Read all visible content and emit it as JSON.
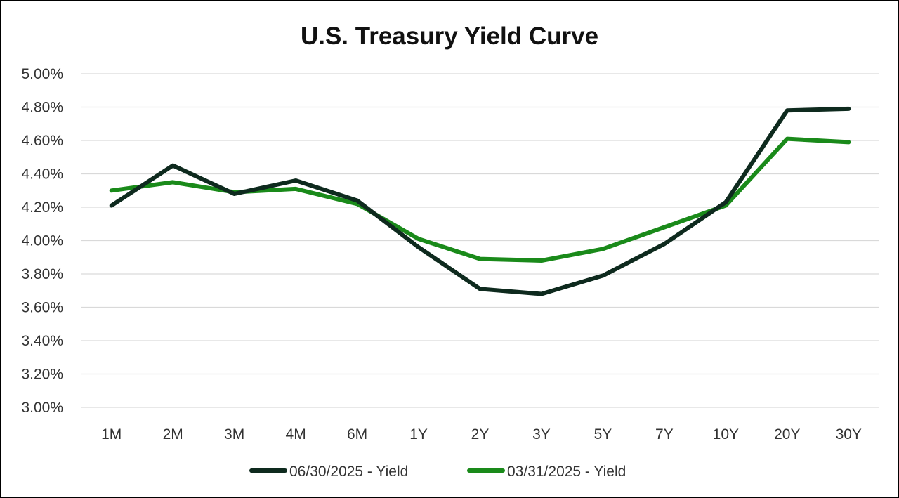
{
  "chart_data": {
    "type": "line",
    "title": "U.S. Treasury Yield Curve",
    "xlabel": "",
    "ylabel": "",
    "categories": [
      "1M",
      "2M",
      "3M",
      "4M",
      "6M",
      "1Y",
      "2Y",
      "3Y",
      "5Y",
      "7Y",
      "10Y",
      "20Y",
      "30Y"
    ],
    "ylim": [
      3.0,
      5.0
    ],
    "yticks": [
      "3.00%",
      "3.20%",
      "3.40%",
      "3.60%",
      "3.80%",
      "4.00%",
      "4.20%",
      "4.40%",
      "4.60%",
      "4.80%",
      "5.00%"
    ],
    "ytick_values": [
      3.0,
      3.2,
      3.4,
      3.6,
      3.8,
      4.0,
      4.2,
      4.4,
      4.6,
      4.8,
      5.0
    ],
    "grid": true,
    "legend_position": "bottom",
    "series": [
      {
        "name": "06/30/2025 - Yield",
        "color": "#0e2a1e",
        "values": [
          4.21,
          4.45,
          4.28,
          4.36,
          4.24,
          3.96,
          3.71,
          3.68,
          3.79,
          3.98,
          4.23,
          4.78,
          4.79
        ]
      },
      {
        "name": "03/31/2025 - Yield",
        "color": "#1a8a1a",
        "values": [
          4.3,
          4.35,
          4.29,
          4.31,
          4.22,
          4.01,
          3.89,
          3.88,
          3.95,
          4.08,
          4.21,
          4.61,
          4.59
        ]
      }
    ]
  }
}
